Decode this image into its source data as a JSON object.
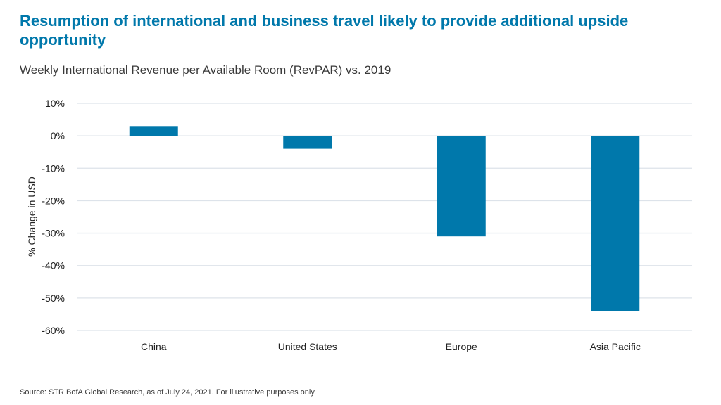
{
  "title": "Resumption of international and business travel likely to provide additional upside opportunity",
  "subtitle": "Weekly International Revenue per Available Room (RevPAR) vs. 2019",
  "source": "Source: STR BofA Global Research, as of July 24, 2021. For illustrative purposes only.",
  "chart_data": {
    "type": "bar",
    "categories": [
      "China",
      "United States",
      "Europe",
      "Asia Pacific"
    ],
    "values": [
      3,
      -4,
      -31,
      -54
    ],
    "xlabel": "",
    "ylabel": "% Change in USD",
    "ylim": [
      -60,
      10
    ],
    "yticks": [
      "10%",
      "0%",
      "-10%",
      "-20%",
      "-30%",
      "-40%",
      "-50%",
      "-60%"
    ],
    "grid": true,
    "bar_color": "#0078ab"
  }
}
